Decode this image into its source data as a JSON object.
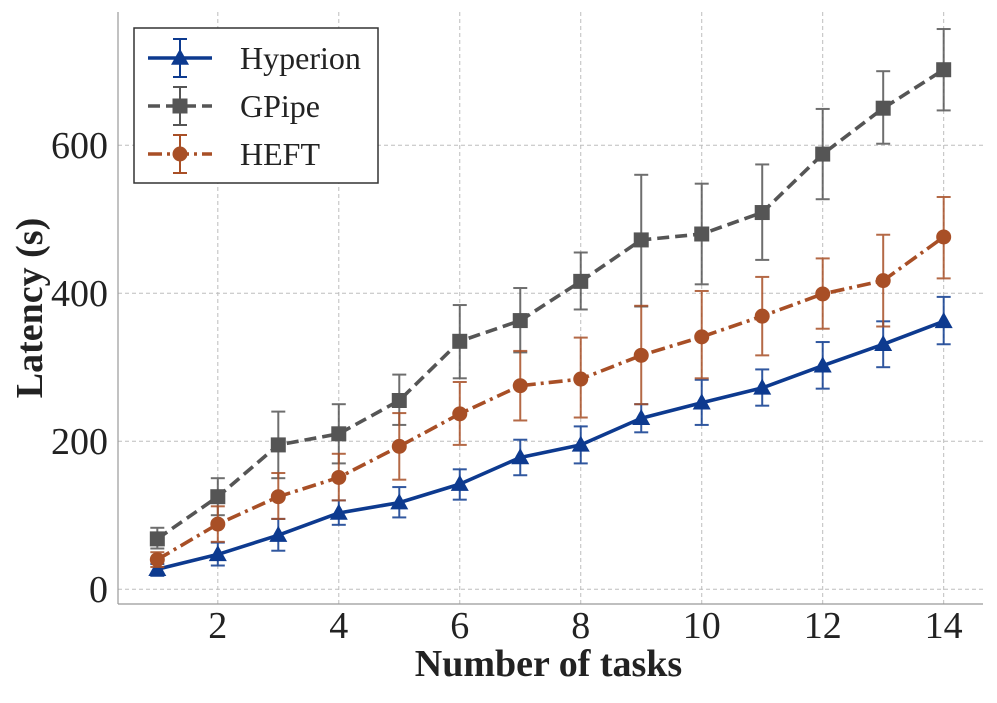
{
  "chart_data": {
    "type": "line",
    "title": "",
    "xlabel": "Number of tasks",
    "ylabel": "Latency (s)",
    "xlim": [
      0.35,
      14.65
    ],
    "ylim": [
      -20,
      780
    ],
    "xticks": [
      2,
      4,
      6,
      8,
      10,
      12,
      14
    ],
    "yticks": [
      0,
      200,
      400,
      600
    ],
    "grid": true,
    "legend_position": "top-left",
    "x": [
      1,
      2,
      3,
      4,
      5,
      6,
      7,
      8,
      9,
      10,
      11,
      12,
      13,
      14
    ],
    "series": [
      {
        "name": "Hyperion",
        "color": "#0d3a8f",
        "marker": "triangle",
        "linestyle": "solid",
        "values": [
          27,
          47,
          73,
          103,
          117,
          142,
          178,
          195,
          231,
          252,
          272,
          302,
          331,
          362
        ],
        "err_low": [
          18,
          32,
          52,
          87,
          97,
          121,
          154,
          170,
          212,
          222,
          248,
          271,
          300,
          331
        ],
        "err_high": [
          34,
          63,
          95,
          120,
          138,
          162,
          202,
          220,
          250,
          283,
          297,
          334,
          362,
          395
        ]
      },
      {
        "name": "GPipe",
        "color": "#555555",
        "marker": "square",
        "linestyle": "dashed",
        "values": [
          68,
          125,
          195,
          210,
          255,
          335,
          363,
          416,
          472,
          480,
          509,
          588,
          650,
          702
        ],
        "err_low": [
          55,
          100,
          150,
          170,
          222,
          285,
          320,
          378,
          382,
          412,
          445,
          527,
          602,
          647
        ],
        "err_high": [
          83,
          150,
          240,
          250,
          290,
          384,
          407,
          455,
          560,
          548,
          574,
          649,
          700,
          757
        ]
      },
      {
        "name": "HEFT",
        "color": "#a84f26",
        "marker": "circle",
        "linestyle": "dashdot",
        "values": [
          40,
          88,
          125,
          151,
          193,
          237,
          275,
          284,
          316,
          341,
          369,
          399,
          417,
          476
        ],
        "err_low": [
          30,
          64,
          95,
          120,
          148,
          195,
          228,
          232,
          250,
          285,
          316,
          352,
          355,
          420
        ],
        "err_high": [
          50,
          112,
          157,
          183,
          238,
          280,
          322,
          340,
          383,
          403,
          422,
          447,
          479,
          530
        ]
      }
    ]
  }
}
